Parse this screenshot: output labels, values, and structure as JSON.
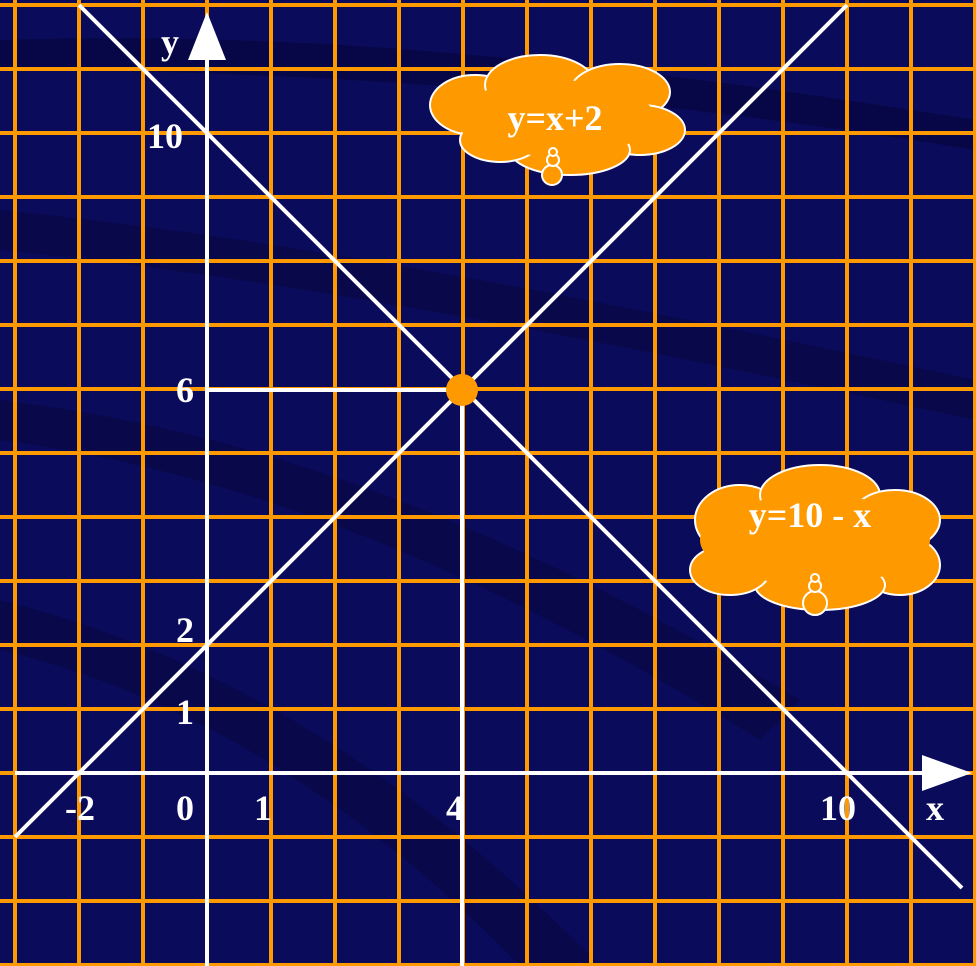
{
  "axes": {
    "x_label": "x",
    "y_label": "y"
  },
  "y_ticks": [
    "10",
    "6",
    "2",
    "1"
  ],
  "x_ticks": [
    "-2",
    "0",
    "1",
    "4",
    "10"
  ],
  "callouts": [
    "y=x+2",
    "y=10 - x"
  ]
}
